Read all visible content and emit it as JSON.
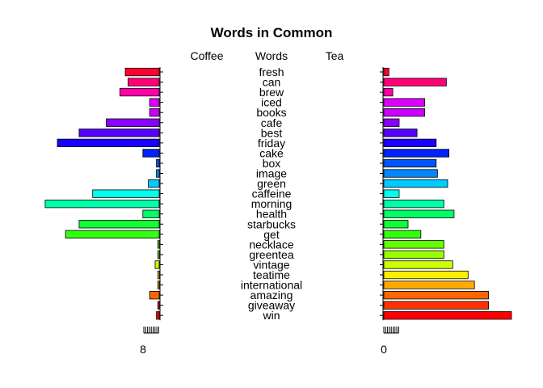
{
  "chart_data": {
    "type": "bar",
    "title": "Words in Common",
    "headers": {
      "left": "Coffee",
      "center": "Words",
      "right": "Tea"
    },
    "categories": [
      "fresh",
      "can",
      "brew",
      "iced",
      "books",
      "cafe",
      "best",
      "friday",
      "cake",
      "box",
      "image",
      "green",
      "caffeine",
      "morning",
      "health",
      "starbucks",
      "get",
      "necklace",
      "greentea",
      "vintage",
      "teatime",
      "international",
      "amazing",
      "giveaway",
      "win"
    ],
    "colors": [
      "#ff0033",
      "#ff0077",
      "#ff00aa",
      "#dd00ff",
      "#cc00ff",
      "#8800ff",
      "#5500ff",
      "#1a00ff",
      "#0022ff",
      "#0055ff",
      "#0088ff",
      "#00ccff",
      "#00ffee",
      "#00ffaa",
      "#00ff66",
      "#11ff33",
      "#33ff11",
      "#66ff00",
      "#99ff00",
      "#ccff00",
      "#ffee00",
      "#ffaa00",
      "#ff6600",
      "#ff3300",
      "#ff0000"
    ],
    "series": [
      {
        "name": "Coffee",
        "values": [
          2.5,
          2.3,
          2.9,
          0.7,
          0.7,
          3.9,
          5.9,
          7.5,
          1.2,
          0.2,
          0.2,
          0.8,
          4.9,
          8.4,
          1.2,
          5.9,
          6.9,
          0.1,
          0.1,
          0.3,
          0.1,
          0.1,
          0.7,
          0.1,
          0.2
        ]
      },
      {
        "name": "Tea",
        "values": [
          0.4,
          4.9,
          0.7,
          3.2,
          3.2,
          1.2,
          2.6,
          4.1,
          5.1,
          4.1,
          4.2,
          5.0,
          1.2,
          4.7,
          5.5,
          1.9,
          2.9,
          4.7,
          4.7,
          5.4,
          6.6,
          7.1,
          8.2,
          8.2,
          10.0
        ]
      }
    ],
    "left_axis": {
      "tick_labels": [
        "8"
      ],
      "tick_count": 9
    },
    "right_axis": {
      "tick_labels": [
        "0"
      ],
      "tick_count": 9
    },
    "grid": false,
    "legend": "none"
  }
}
